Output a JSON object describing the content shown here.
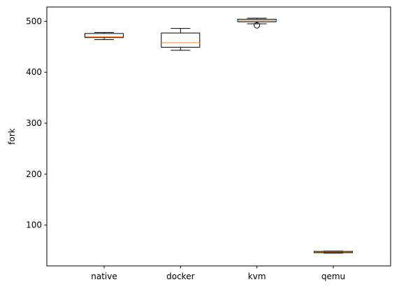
{
  "chart_data": {
    "type": "box",
    "title": "",
    "xlabel": "",
    "ylabel": "fork",
    "ylim": [
      20,
      528
    ],
    "yticks": [
      100,
      200,
      300,
      400,
      500
    ],
    "grid": false,
    "colors": {
      "box": "#000000",
      "median": "#ff7f0e",
      "flier": "#000000"
    },
    "categories": [
      "native",
      "docker",
      "kvm",
      "qemu"
    ],
    "boxes": [
      {
        "label": "native",
        "whislo": 464,
        "q1": 468,
        "med": 470,
        "q3": 476,
        "whishi": 478,
        "fliers": []
      },
      {
        "label": "docker",
        "whislo": 443,
        "q1": 449,
        "med": 458,
        "q3": 477,
        "whishi": 486,
        "fliers": []
      },
      {
        "label": "kvm",
        "whislo": 495,
        "q1": 499,
        "med": 501,
        "q3": 504,
        "whishi": 506,
        "fliers": [
          492
        ]
      },
      {
        "label": "qemu",
        "whislo": 45,
        "q1": 46,
        "med": 47.5,
        "q3": 48.5,
        "whishi": 49,
        "fliers": []
      }
    ]
  }
}
